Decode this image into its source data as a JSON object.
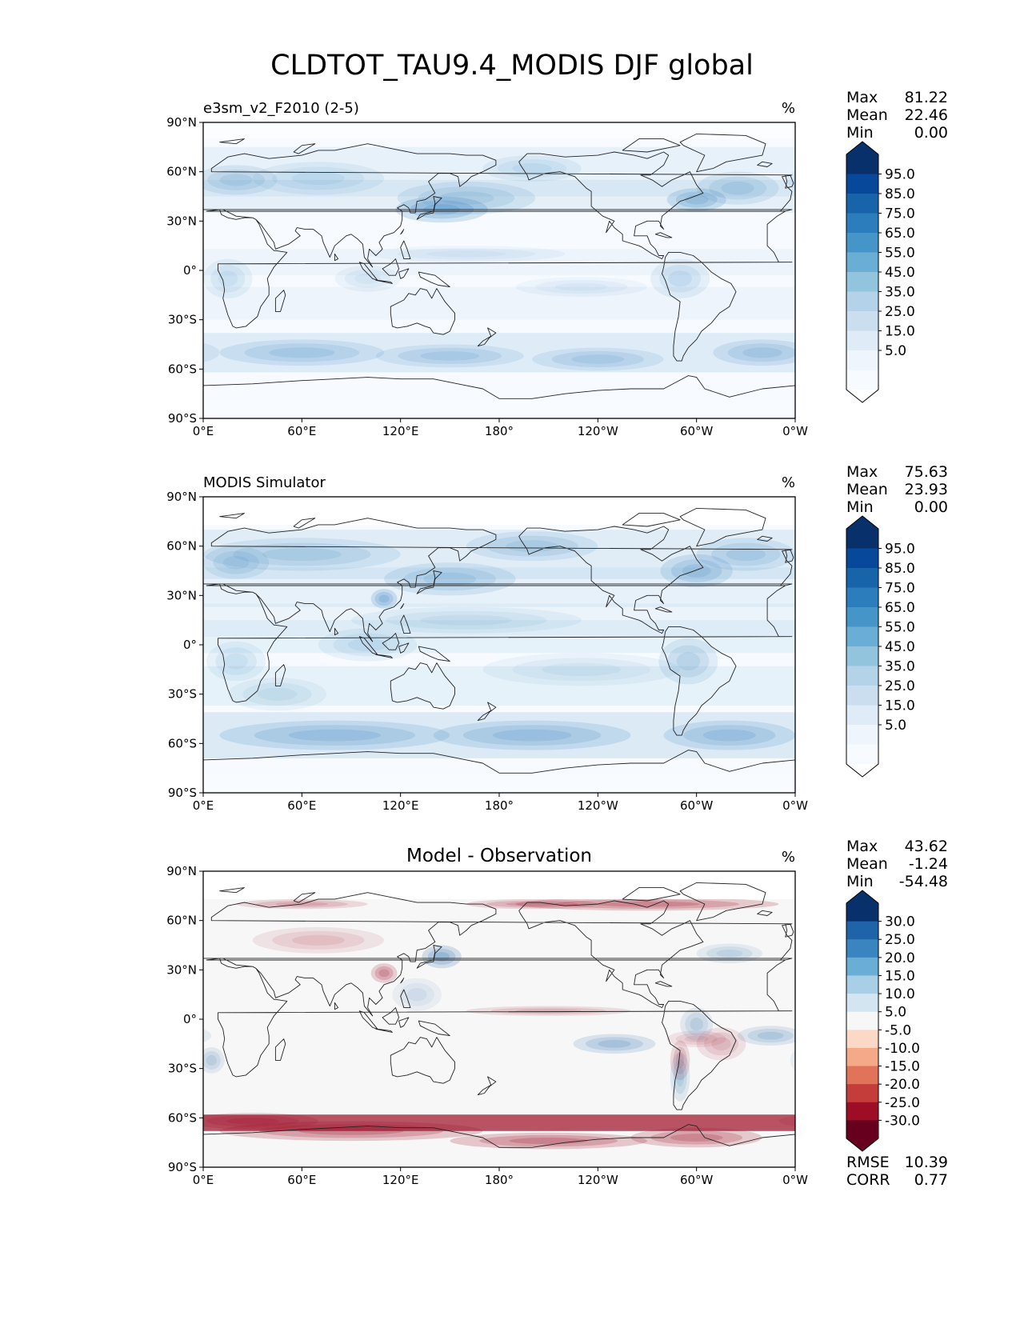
{
  "title": "CLDTOT_TAU9.4_MODIS DJF global",
  "x_ticks": [
    "0°E",
    "60°E",
    "120°E",
    "180°",
    "120°W",
    "60°W",
    "0°W"
  ],
  "y_ticks": [
    "90°N",
    "60°N",
    "30°N",
    "0°",
    "30°S",
    "60°S",
    "90°S"
  ],
  "stat_labels": {
    "max": "Max",
    "mean": "Mean",
    "min": "Min",
    "rmse": "RMSE",
    "corr": "CORR"
  },
  "panels": [
    {
      "left_title": "e3sm_v2_F2010 (2-5)",
      "center_title": "",
      "units": "%",
      "stats": {
        "max": "81.22",
        "mean": "22.46",
        "min": "0.00"
      },
      "colorbar": {
        "ticks": [
          "95.0",
          "85.0",
          "75.0",
          "65.0",
          "55.0",
          "45.0",
          "35.0",
          "25.0",
          "15.0",
          "5.0"
        ],
        "colors": [
          "#08306b",
          "#08489a",
          "#1764ab",
          "#2c7dbb",
          "#4695c8",
          "#6aaed6",
          "#92c4de",
          "#b4d3e9",
          "#cadef0",
          "#dfebf7",
          "#eef5fc",
          "#f7fbff"
        ],
        "over_color": "#08306b",
        "under_color": "#ffffff"
      }
    },
    {
      "left_title": "MODIS Simulator",
      "center_title": "",
      "units": "%",
      "stats": {
        "max": "75.63",
        "mean": "23.93",
        "min": "0.00"
      },
      "colorbar": {
        "ticks": [
          "95.0",
          "85.0",
          "75.0",
          "65.0",
          "55.0",
          "45.0",
          "35.0",
          "25.0",
          "15.0",
          "5.0"
        ],
        "colors": [
          "#08306b",
          "#08489a",
          "#1764ab",
          "#2c7dbb",
          "#4695c8",
          "#6aaed6",
          "#92c4de",
          "#b4d3e9",
          "#cadef0",
          "#dfebf7",
          "#eef5fc",
          "#f7fbff"
        ],
        "over_color": "#08306b",
        "under_color": "#ffffff"
      }
    },
    {
      "left_title": "",
      "center_title": "Model - Observation",
      "units": "%",
      "stats": {
        "max": "43.62",
        "mean": "-1.24",
        "min": "-54.48",
        "rmse": "10.39",
        "corr": "0.77"
      },
      "colorbar": {
        "ticks": [
          "30.0",
          "25.0",
          "20.0",
          "15.0",
          "10.0",
          "5.0",
          "-5.0",
          "-10.0",
          "-15.0",
          "-20.0",
          "-25.0",
          "-30.0"
        ],
        "colors": [
          "#08306b",
          "#1f63a8",
          "#3a85c0",
          "#6aaed6",
          "#a8cfe5",
          "#d2e5f1",
          "#f7f7f7",
          "#fbd9c6",
          "#f4a988",
          "#e0735a",
          "#c53d3a",
          "#9d0d25",
          "#67001f"
        ],
        "over_color": "#08306b",
        "under_color": "#67001f"
      }
    }
  ],
  "colors": {
    "blue_light": "#eaf2fa",
    "blue_mid": "#a9cce4",
    "blue_dark": "#3d86c0",
    "diff_white": "#f7f7f7",
    "diff_red": "#9d0d25",
    "diff_blue": "#2b70b0",
    "coast": "#222222"
  }
}
